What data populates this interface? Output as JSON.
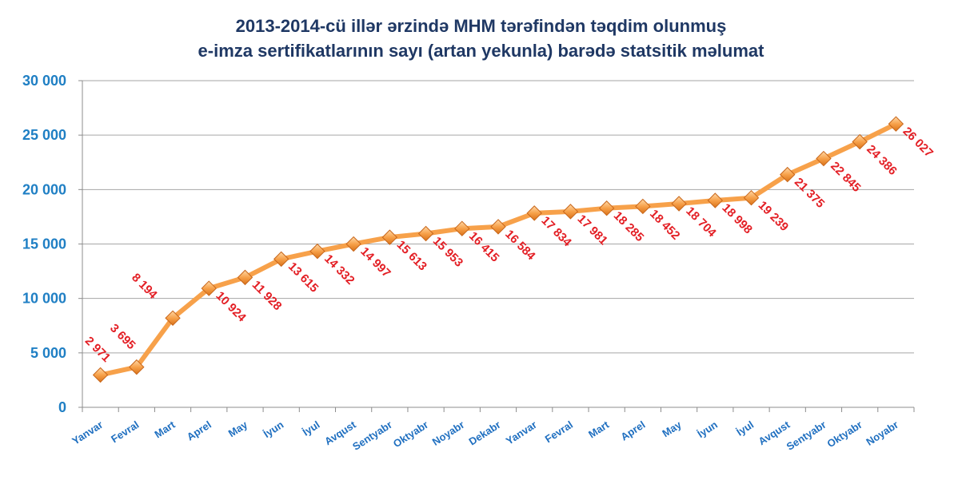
{
  "chart_data": {
    "type": "line",
    "title": "2013-2014-cü illər ərzində MHM tərəfindən təqdim olunmuş",
    "subtitle": "e-imza sertifikatlarının sayı (artan yekunla) barədə statsitik məlumat",
    "xlabel": "",
    "ylabel": "",
    "categories": [
      "Yanvar",
      "Fevral",
      "Mart",
      "Aprel",
      "May",
      "İyun",
      "İyul",
      "Avqust",
      "Sentyabr",
      "Oktyabr",
      "Noyabr",
      "Dekabr",
      "Yanvar",
      "Fevral",
      "Mart",
      "Aprel",
      "May",
      "İyun",
      "İyul",
      "Avqust",
      "Sentyabr",
      "Oktyabr",
      "Noyabr"
    ],
    "series": [
      {
        "values": [
          2971,
          3695,
          8194,
          10924,
          11928,
          13615,
          14332,
          14997,
          15613,
          15953,
          16415,
          16584,
          17834,
          17981,
          18285,
          18452,
          18704,
          18998,
          19239,
          21375,
          22845,
          24386,
          26027
        ],
        "labels": [
          "2 971",
          "3 695",
          "8 194",
          "10 924",
          "11 928",
          "13 615",
          "14 332",
          "14 997",
          "15 613",
          "15 953",
          "16 415",
          "16 584",
          "17 834",
          "17 981",
          "18 285",
          "18 452",
          "18 704",
          "18 998",
          "19 239",
          "21 375",
          "22 845",
          "24 386",
          "26 027"
        ]
      }
    ],
    "ylim": [
      0,
      30000
    ],
    "yticks": [
      0,
      5000,
      10000,
      15000,
      20000,
      25000,
      30000
    ],
    "ytick_labels": [
      "0",
      "5 000",
      "10 000",
      "15 000",
      "20 000",
      "25 000",
      "30 000"
    ],
    "grid": true,
    "legend": "none",
    "colors": {
      "line": "#f7a14a",
      "marker": "#f08a24",
      "data_label": "#e31e24",
      "axis_tick": "#1f7fc4",
      "title": "#1f3864",
      "grid": "#a6a6a6"
    }
  }
}
